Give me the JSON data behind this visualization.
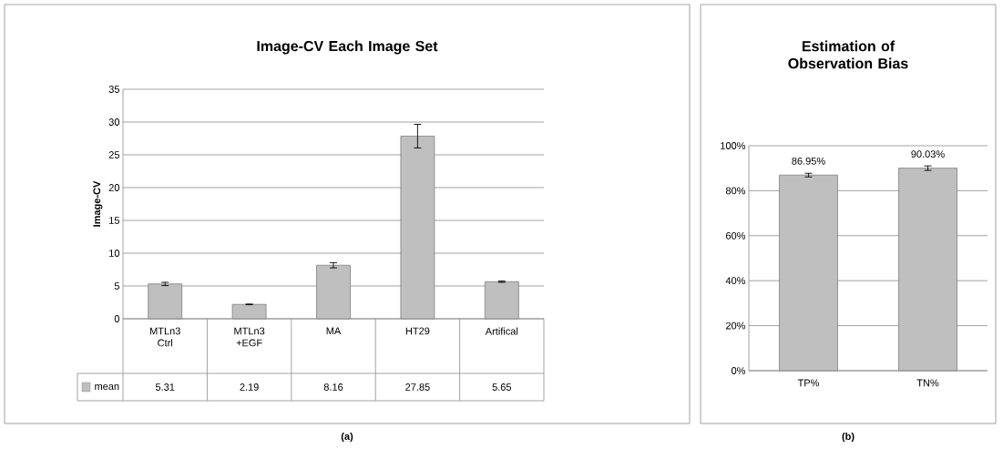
{
  "chart_data": [
    {
      "type": "bar",
      "title": "Image-CV  Each Image Set",
      "ylabel": "Image-CV",
      "categories": [
        "MTLn3 Ctrl",
        "MTLn3 +EGF",
        "MA",
        "HT29",
        "Artifical"
      ],
      "series": [
        {
          "name": "mean",
          "color": "#bfbfbf",
          "values": [
            5.31,
            2.19,
            8.16,
            27.85,
            5.65
          ],
          "errors": [
            0.25,
            0.05,
            0.4,
            1.8,
            0.1
          ]
        }
      ],
      "ylim": [
        0,
        35
      ],
      "yticks": [
        0,
        5,
        10,
        15,
        20,
        25,
        30,
        35
      ],
      "grid": "y",
      "legend": "bottom left",
      "data_labels": true,
      "annotations": [
        "(a)"
      ]
    },
    {
      "type": "bar",
      "title": "Estimation of Observation Bias",
      "categories": [
        "TP%",
        "TN%"
      ],
      "values": [
        86.95,
        90.03
      ],
      "color": "#bfbfbf",
      "errors": [
        0.8,
        1.0
      ],
      "value_labels": [
        "86.95%",
        "90.03%"
      ],
      "ylim": [
        0,
        100
      ],
      "yticks": [
        {
          "value": 0,
          "label": "0%"
        },
        {
          "value": 20,
          "label": "20%"
        },
        {
          "value": 40,
          "label": "40%"
        },
        {
          "value": 60,
          "label": "60%"
        },
        {
          "value": 80,
          "label": "80%"
        },
        {
          "value": 100,
          "label": "100%"
        }
      ],
      "grid": "y",
      "annotations": [
        "(b)"
      ]
    }
  ]
}
